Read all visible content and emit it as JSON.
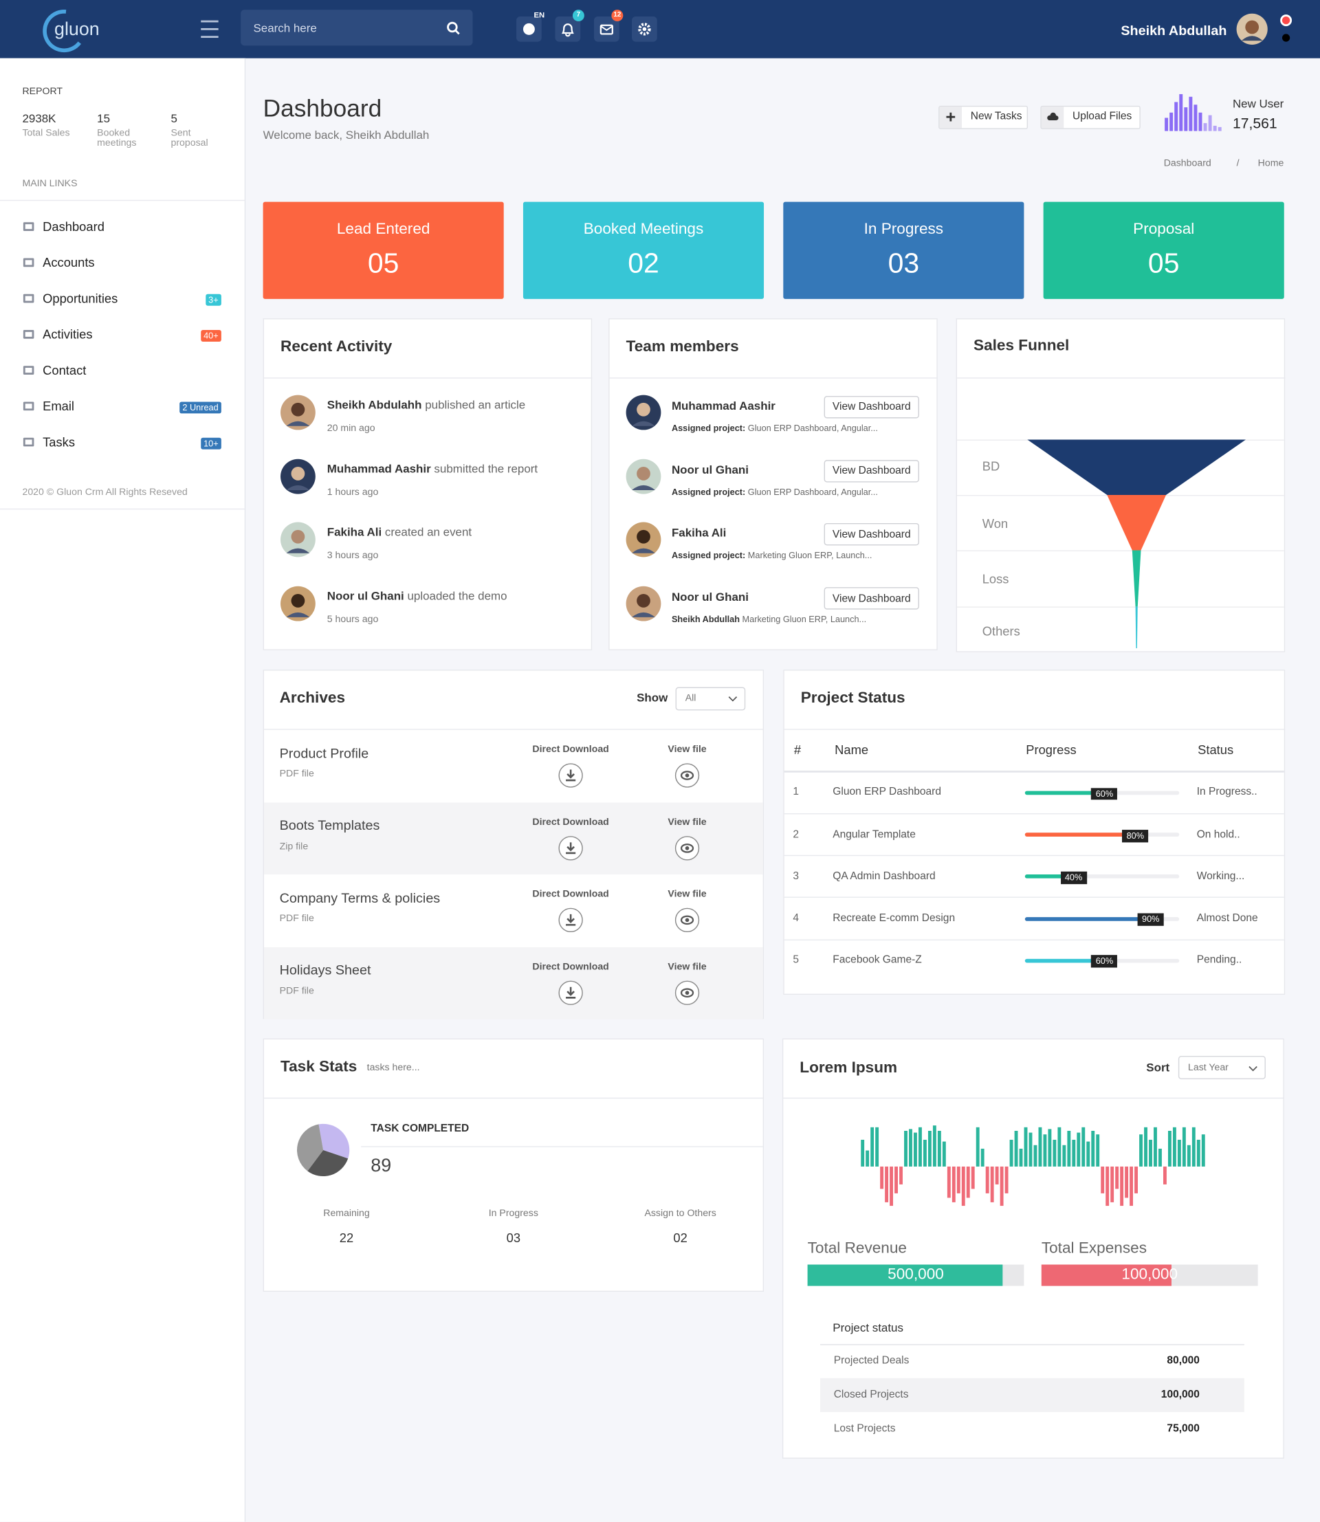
{
  "header": {
    "logo": "gluon",
    "search_placeholder": "Search here",
    "language": "EN",
    "notifications": 7,
    "messages": 12,
    "user_name": "Sheikh Abdullah"
  },
  "sidebar": {
    "report_title": "REPORT",
    "report": [
      {
        "value": "2938K",
        "label": "Total Sales"
      },
      {
        "value": "15",
        "label": "Booked meetings"
      },
      {
        "value": "5",
        "label": "Sent proposal"
      }
    ],
    "links_title": "MAIN LINKS",
    "links": [
      {
        "label": "Dashboard"
      },
      {
        "label": "Accounts"
      },
      {
        "label": "Opportunities",
        "badge": "3+",
        "badge_color": "#37c6d6"
      },
      {
        "label": "Activities",
        "badge": "40+",
        "badge_color": "#fc6540"
      },
      {
        "label": "Contact"
      },
      {
        "label": "Email",
        "badge": "2 Unread",
        "badge_color": "#3578b8"
      },
      {
        "label": "Tasks",
        "badge": "10+",
        "badge_color": "#3578b8"
      }
    ],
    "footer": "2020 © Gluon Crm All Rights Reseved"
  },
  "page": {
    "title": "Dashboard",
    "subtitle": "Welcome back, Sheikh Abdullah",
    "buttons": [
      "New Tasks",
      "Upload Files"
    ],
    "new_user": {
      "label": "New User",
      "value": "17,561",
      "type": "bar",
      "values": [
        10,
        14,
        22,
        28,
        18,
        26,
        20,
        14,
        6,
        12,
        4,
        3
      ],
      "color": "#8a6cf5"
    },
    "breadcrumb": [
      "Dashboard",
      "/",
      "Home"
    ]
  },
  "stat_cards": [
    {
      "label": "Lead Entered",
      "value": "05",
      "color": "#fc6540"
    },
    {
      "label": "Booked Meetings",
      "value": "02",
      "color": "#37c6d6"
    },
    {
      "label": "In Progress",
      "value": "03",
      "color": "#3578b8"
    },
    {
      "label": "Proposal",
      "value": "05",
      "color": "#20bf98"
    }
  ],
  "recent_activity": {
    "title": "Recent Activity",
    "items": [
      {
        "name": "Sheikh Abdulahh",
        "action": "published an article",
        "time": "20 min ago"
      },
      {
        "name": "Muhammad Aashir",
        "action": "submitted the report",
        "time": "1 hours ago"
      },
      {
        "name": "Fakiha Ali",
        "action": "created an event",
        "time": "3 hours ago"
      },
      {
        "name": "Noor ul Ghani",
        "action": "uploaded the demo",
        "time": "5 hours ago"
      }
    ]
  },
  "team_members": {
    "title": "Team members",
    "button": "View Dashboard",
    "items": [
      {
        "name": "Muhammad Aashir",
        "project_label": "Assigned project:",
        "project": "Gluon ERP Dashboard, Angular..."
      },
      {
        "name": "Noor ul Ghani",
        "project_label": "Assigned project:",
        "project": "Gluon ERP Dashboard, Angular..."
      },
      {
        "name": "Fakiha Ali",
        "project_label": "Assigned project:",
        "project": "Marketing Gluon ERP, Launch..."
      },
      {
        "name": "Noor ul Ghani",
        "project_label": "Sheikh Abdullah",
        "project": "Marketing Gluon ERP, Launch..."
      }
    ]
  },
  "sales_funnel": {
    "title": "Sales Funnel",
    "type": "funnel",
    "categories": [
      "BD",
      "Won",
      "Loss",
      "Others"
    ],
    "values": [
      100,
      27,
      4,
      1
    ],
    "colors": [
      "#1c3b6f",
      "#fc6540",
      "#20bf98",
      "#37c6d6"
    ]
  },
  "archives": {
    "title": "Archives",
    "show_label": "Show",
    "show_value": "All",
    "col_download": "Direct Download",
    "col_view": "View file",
    "items": [
      {
        "name": "Product Profile",
        "type": "PDF file"
      },
      {
        "name": "Boots Templates",
        "type": "Zip file"
      },
      {
        "name": "Company Terms & policies",
        "type": "PDF file"
      },
      {
        "name": "Holidays Sheet",
        "type": "PDF file"
      }
    ]
  },
  "project_status": {
    "title": "Project Status",
    "columns": [
      "#",
      "Name",
      "Progress",
      "Status"
    ],
    "xlim": [
      0,
      100
    ],
    "rows": [
      {
        "id": 1,
        "name": "Gluon ERP Dashboard",
        "progress": 60,
        "progress_label": "60%",
        "status": "In Progress..",
        "color": "#20bf98"
      },
      {
        "id": 2,
        "name": "Angular Template",
        "progress": 80,
        "progress_label": "80%",
        "status": "On hold..",
        "color": "#fc6540"
      },
      {
        "id": 3,
        "name": "QA Admin Dashboard",
        "progress": 40,
        "progress_label": "40%",
        "status": "Working...",
        "color": "#20bf98"
      },
      {
        "id": 4,
        "name": "Recreate E-comm Design",
        "progress": 90,
        "progress_label": "90%",
        "status": "Almost Done",
        "color": "#3578b8"
      },
      {
        "id": 5,
        "name": "Facebook Game-Z",
        "progress": 60,
        "progress_label": "60%",
        "status": "Pending..",
        "color": "#37c6d6"
      }
    ]
  },
  "task_stats": {
    "title": "Task Stats",
    "subtitle": "tasks here...",
    "completed_label": "TASK COMPLETED",
    "completed": 89,
    "pie": {
      "type": "pie",
      "values": [
        33,
        30,
        37
      ],
      "colors": [
        "#c4b8f0",
        "#555555",
        "#9a9a9a"
      ]
    },
    "items": [
      {
        "label": "Remaining",
        "value": "22"
      },
      {
        "label": "In Progress",
        "value": "03"
      },
      {
        "label": "Assign to Others",
        "value": "02"
      }
    ]
  },
  "lorem": {
    "title": "Lorem Ipsum",
    "sort_label": "Sort",
    "sort_value": "Last Year",
    "chart": {
      "type": "bar",
      "ylim": [
        -50,
        50
      ],
      "positive_color": "#2ab59c",
      "negative_color": "#ef6b78",
      "values": [
        30,
        18,
        44,
        44,
        -25,
        -40,
        -44,
        -30,
        -20,
        40,
        42,
        38,
        44,
        30,
        40,
        46,
        40,
        28,
        -35,
        -40,
        -30,
        -44,
        -35,
        -25,
        44,
        20,
        -30,
        -40,
        -20,
        -44,
        -30,
        30,
        40,
        20,
        44,
        38,
        24,
        44,
        36,
        42,
        30,
        44,
        24,
        40,
        30,
        38,
        44,
        28,
        40,
        36,
        -30,
        -44,
        -40,
        -25,
        -44,
        -35,
        -44,
        -30,
        36,
        44,
        30,
        44,
        20,
        -20,
        40,
        44,
        30,
        44,
        24,
        44,
        30,
        36
      ]
    },
    "totals": [
      {
        "label": "Total Revenue",
        "value": "500,000",
        "progress": 90,
        "color": "#2fbc9c"
      },
      {
        "label": "Total Expenses",
        "value": "100,000",
        "progress": 60,
        "color": "#ee6873"
      }
    ],
    "progress_lim": [
      0,
      100
    ],
    "status_title": "Project status",
    "status_rows": [
      {
        "label": "Projected Deals",
        "value": "80,000"
      },
      {
        "label": "Closed Projects",
        "value": "100,000"
      },
      {
        "label": "Lost Projects",
        "value": "75,000"
      }
    ]
  }
}
